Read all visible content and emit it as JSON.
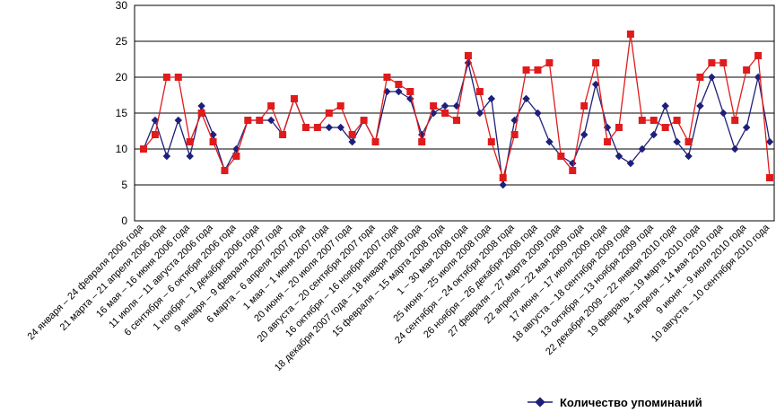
{
  "chart_data": {
    "type": "line",
    "title": "",
    "xlabel": "",
    "ylabel": "",
    "ylim": [
      0,
      30
    ],
    "yticks": [
      0,
      5,
      10,
      15,
      20,
      25,
      30
    ],
    "grid": true,
    "legend_position": "bottom-right",
    "category_labels": [
      "24 января – 24 февраля 2006 года",
      "21 марта – 21 апреля 2006 года",
      "16 мая – 16 июня 2006 года",
      "11 июля – 11 августа 2006 года",
      "6 сентября – 6 октября 2006 года",
      "1 ноября – 1 декабря 2006 года",
      "9 января – 9 февраля 2007 года",
      "6 марта – 6 апреля 2007 года",
      "1 мая – 1 июня 2007 года",
      "20 июня – 20 июля 2007 года",
      "20 августа – 20 сентября 2007 года",
      "16 октября – 16 ноября 2007 года",
      "18 декабря 2007 года – 18 января 2008 года",
      "15 февраля – 15 марта 2008 года",
      "1 – 30 мая 2008 года",
      "25 июня – 25 июля 2008 года",
      "24 сентября – 24 октября 2008 года",
      "26 ноября – 26 декабря 2008 года",
      "27 февраля – 27 марта 2009 года",
      "22 апреля – 22 мая 2009 года",
      "17 июня – 17 июля 2009 года",
      "18 августа – 18 сентября 2009 года",
      "13 октября – 13 ноября 2009 года",
      "22 декабря 2009 – 22 января 2010 года",
      "19 февраль – 19 марта 2010 года",
      "14 апреля – 14 мая 2010 года",
      "9 июня – 9 июля 2010 года",
      "10 августа – 10 сентября 2010 года"
    ],
    "series": [
      {
        "name": "Количество упоминаний",
        "color": "#1f1f7a",
        "marker": "diamond",
        "values": [
          10,
          14,
          9,
          14,
          9,
          16,
          12,
          7,
          10,
          14,
          14,
          14,
          12,
          17,
          13,
          13,
          13,
          13,
          11,
          14,
          11,
          18,
          18,
          17,
          12,
          15,
          16,
          16,
          22,
          15,
          17,
          5,
          14,
          17,
          15,
          11,
          9,
          8,
          12,
          19,
          13,
          9,
          8,
          10,
          12,
          16,
          11,
          9,
          16,
          20,
          15,
          10,
          13,
          20,
          11
        ]
      },
      {
        "name": "",
        "color": "#e01b1b",
        "marker": "square",
        "values": [
          10,
          12,
          20,
          20,
          11,
          15,
          11,
          7,
          9,
          14,
          14,
          16,
          12,
          17,
          13,
          13,
          15,
          16,
          12,
          14,
          11,
          20,
          19,
          18,
          11,
          16,
          15,
          14,
          23,
          18,
          11,
          6,
          12,
          21,
          21,
          22,
          9,
          7,
          16,
          22,
          11,
          13,
          26,
          14,
          14,
          13,
          14,
          11,
          20,
          22,
          22,
          14,
          21,
          23,
          6
        ]
      }
    ]
  }
}
